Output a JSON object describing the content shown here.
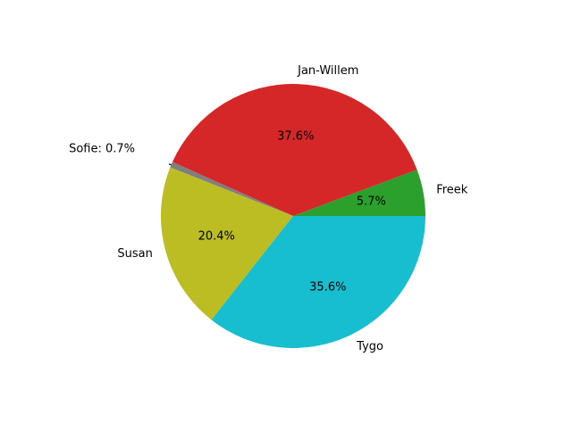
{
  "chart_data": {
    "type": "pie",
    "title": "",
    "categories": [
      "Freek",
      "Jan-Willem",
      "Sofie",
      "Susan",
      "Tygo"
    ],
    "values": [
      5.7,
      37.6,
      0.7,
      20.4,
      35.6
    ],
    "autopct_labels": [
      "5.7%",
      "37.6%",
      "",
      "20.4%",
      "35.6%"
    ],
    "outside_labels": [
      "Freek",
      "Jan-Willem",
      "",
      "Susan",
      "Tygo"
    ],
    "colors": [
      "#2ca02c",
      "#d62728",
      "#7f7f7f",
      "#bcbd22",
      "#17becf"
    ],
    "start_angle_deg": 0,
    "direction": "counterclockwise",
    "annotation": {
      "category": "Sofie",
      "text": "Sofie: 0.7%"
    }
  }
}
